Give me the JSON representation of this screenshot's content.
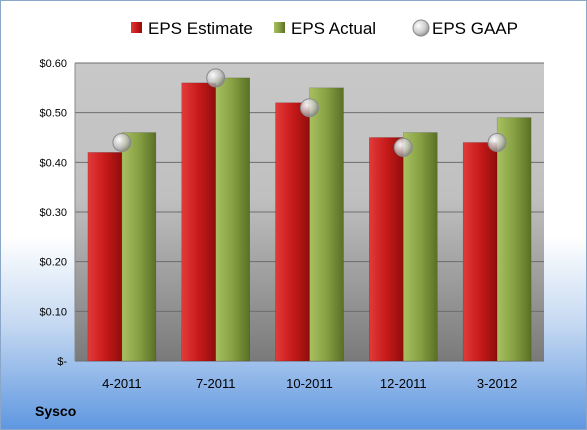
{
  "company": "Sysco",
  "chart_data": {
    "type": "bar",
    "title": "",
    "xlabel": "",
    "ylabel": "",
    "categories": [
      "4-2011",
      "7-2011",
      "10-2011",
      "12-2011",
      "3-2012"
    ],
    "series": [
      {
        "name": "EPS Estimate",
        "kind": "bar",
        "color": "#cc1f1f",
        "values": [
          0.42,
          0.56,
          0.52,
          0.45,
          0.44
        ]
      },
      {
        "name": "EPS Actual",
        "kind": "bar",
        "color": "#7f9a3c",
        "values": [
          0.46,
          0.57,
          0.55,
          0.46,
          0.49
        ]
      },
      {
        "name": "EPS GAAP",
        "kind": "marker",
        "color": "#c8c8c8",
        "values": [
          0.44,
          0.57,
          0.51,
          0.43,
          0.44
        ]
      }
    ],
    "ylim": [
      0,
      0.6
    ],
    "yticks": [
      0,
      0.1,
      0.2,
      0.3,
      0.4,
      0.5,
      0.6
    ],
    "ytick_labels": [
      "$-",
      "$0.10",
      "$0.20",
      "$0.30",
      "$0.40",
      "$0.50",
      "$0.60"
    ],
    "grid": true,
    "legend": "top"
  }
}
